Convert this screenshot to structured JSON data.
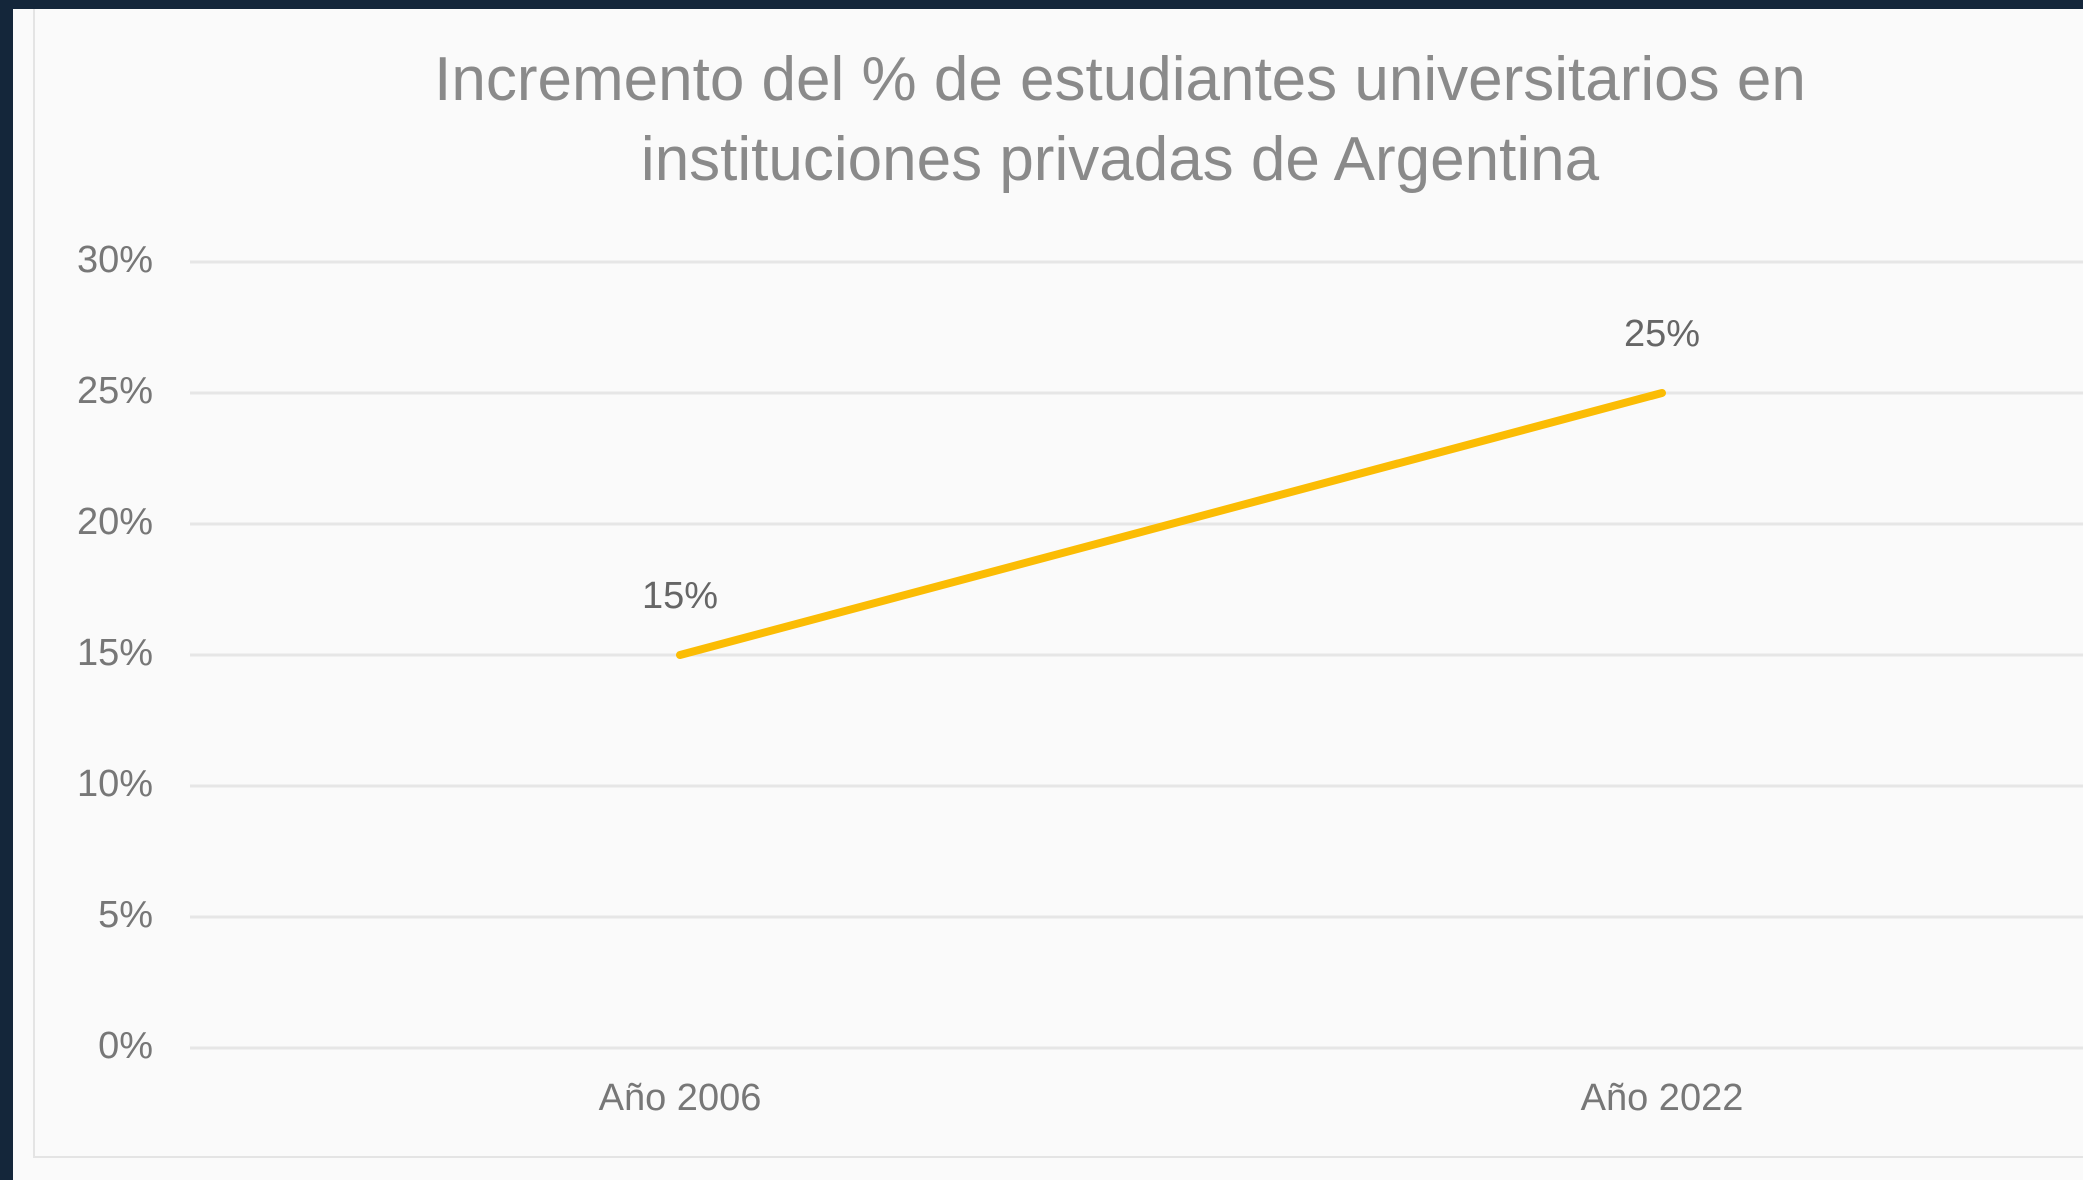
{
  "chart_data": {
    "type": "line",
    "title": "Incremento del % de estudiantes universitarios en instituciones privadas de Argentina",
    "categories": [
      "Año 2006",
      "Año 2022"
    ],
    "values": [
      15,
      25
    ],
    "value_labels": [
      "15%",
      "25%"
    ],
    "color": "#fbbc04",
    "ylim": [
      0,
      30
    ],
    "yticks": [
      {
        "value": 0,
        "label": "0%"
      },
      {
        "value": 5,
        "label": "5%"
      },
      {
        "value": 10,
        "label": "10%"
      },
      {
        "value": 15,
        "label": "15%"
      },
      {
        "value": 20,
        "label": "20%"
      },
      {
        "value": 25,
        "label": "25%"
      },
      {
        "value": 30,
        "label": "30%"
      }
    ],
    "grid": true
  }
}
